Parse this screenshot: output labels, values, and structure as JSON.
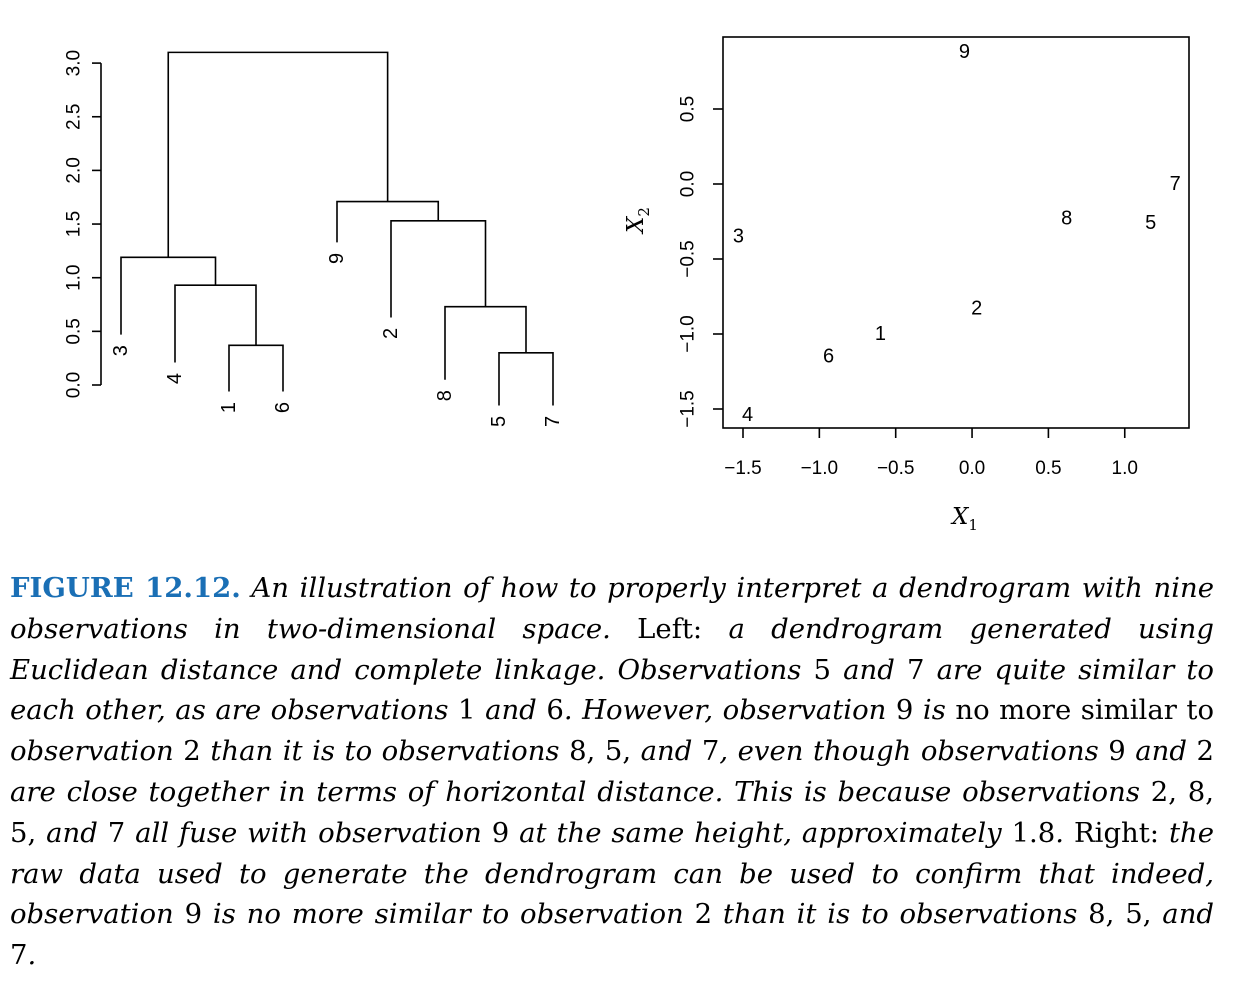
{
  "chart_data": [
    {
      "type": "dendrogram",
      "title": "",
      "ylabel": "",
      "y_ticks": [
        "0.0",
        "0.5",
        "1.0",
        "1.5",
        "2.0",
        "2.5",
        "3.0"
      ],
      "ylim": [
        0,
        3.1
      ],
      "leaf_order": [
        "3",
        "4",
        "1",
        "6",
        "9",
        "2",
        "8",
        "5",
        "7"
      ],
      "leaf_label_heights": [
        0.32,
        0.06,
        -0.21,
        -0.21,
        1.18,
        0.48,
        -0.1,
        -0.34,
        -0.34
      ],
      "merges": [
        {
          "left": "1",
          "right": "6",
          "height": 0.37
        },
        {
          "left": "5",
          "right": "7",
          "height": 0.3
        },
        {
          "left": "8",
          "right": "5,7",
          "height": 0.73
        },
        {
          "left": "4",
          "right": "1,6",
          "height": 0.93
        },
        {
          "left": "2",
          "right": "8,5,7",
          "height": 1.53
        },
        {
          "left": "3",
          "right": "4,1,6",
          "height": 1.19
        },
        {
          "left": "9",
          "right": "2,8,5,7",
          "height": 1.71
        },
        {
          "left": "3,4,1,6",
          "right": "9,2,8,5,7",
          "height": 3.1
        }
      ]
    },
    {
      "type": "scatter",
      "title": "",
      "xlabel": "X",
      "xlabel_sub": "1",
      "ylabel": "X",
      "ylabel_sub": "2",
      "x_ticks": [
        "−1.5",
        "−1.0",
        "−0.5",
        "0.0",
        "0.5",
        "1.0"
      ],
      "y_ticks": [
        "−1.5",
        "−1.0",
        "−0.5",
        "0.0",
        "0.5"
      ],
      "xlim": [
        -1.57,
        1.42
      ],
      "ylim": [
        -1.63,
        0.97
      ],
      "points": [
        {
          "label": "1",
          "x": -0.6,
          "y": -1.0
        },
        {
          "label": "2",
          "x": 0.03,
          "y": -0.83
        },
        {
          "label": "3",
          "x": -1.53,
          "y": -0.35
        },
        {
          "label": "4",
          "x": -1.47,
          "y": -1.54
        },
        {
          "label": "5",
          "x": 1.17,
          "y": -0.26
        },
        {
          "label": "6",
          "x": -0.94,
          "y": -1.15
        },
        {
          "label": "7",
          "x": 1.33,
          "y": 0.0
        },
        {
          "label": "8",
          "x": 0.62,
          "y": -0.23
        },
        {
          "label": "9",
          "x": -0.05,
          "y": 0.88
        }
      ]
    }
  ],
  "caption": {
    "label": "FIGURE 12.12.",
    "segments": [
      {
        "t": " An illustration of how to properly interpret a dendrogram with nine observations in two-dimensional space. ",
        "it": true
      },
      {
        "t": "Left:",
        "it": false
      },
      {
        "t": " a dendrogram generated using Euclidean distance and complete linkage. Observations ",
        "it": true
      },
      {
        "t": "5",
        "it": false
      },
      {
        "t": " and ",
        "it": true
      },
      {
        "t": "7",
        "it": false
      },
      {
        "t": " are quite similar to each other, as are observations ",
        "it": true
      },
      {
        "t": "1",
        "it": false
      },
      {
        "t": " and ",
        "it": true
      },
      {
        "t": "6",
        "it": false
      },
      {
        "t": ". However, observation ",
        "it": true
      },
      {
        "t": "9",
        "it": false
      },
      {
        "t": " is ",
        "it": true
      },
      {
        "t": "no more similar",
        "it": false
      },
      {
        "t": " to ",
        "it": false
      },
      {
        "t": "observation ",
        "it": true
      },
      {
        "t": "2",
        "it": false
      },
      {
        "t": " than it is to observations ",
        "it": true
      },
      {
        "t": "8, 5,",
        "it": false
      },
      {
        "t": " and ",
        "it": true
      },
      {
        "t": "7",
        "it": false
      },
      {
        "t": ", even though observations ",
        "it": true
      },
      {
        "t": "9",
        "it": false
      },
      {
        "t": " and ",
        "it": true
      },
      {
        "t": "2",
        "it": false
      },
      {
        "t": " are close together in terms of horizontal distance. This is because observations ",
        "it": true
      },
      {
        "t": "2, 8, 5,",
        "it": false
      },
      {
        "t": " and ",
        "it": true
      },
      {
        "t": "7",
        "it": false
      },
      {
        "t": " all fuse with observation ",
        "it": true
      },
      {
        "t": "9",
        "it": false
      },
      {
        "t": " at the same height, approximately ",
        "it": true
      },
      {
        "t": "1.8",
        "it": false
      },
      {
        "t": ". ",
        "it": true
      },
      {
        "t": "Right:",
        "it": false
      },
      {
        "t": " the raw data used to generate the dendrogram can be used to confirm that indeed, observation ",
        "it": true
      },
      {
        "t": "9",
        "it": false
      },
      {
        "t": " is no more similar to observation ",
        "it": true
      },
      {
        "t": "2",
        "it": false
      },
      {
        "t": " than it is to observations ",
        "it": true
      },
      {
        "t": "8, 5,",
        "it": false
      },
      {
        "t": " and ",
        "it": true
      },
      {
        "t": "7",
        "it": false
      },
      {
        "t": ".",
        "it": true
      }
    ]
  }
}
